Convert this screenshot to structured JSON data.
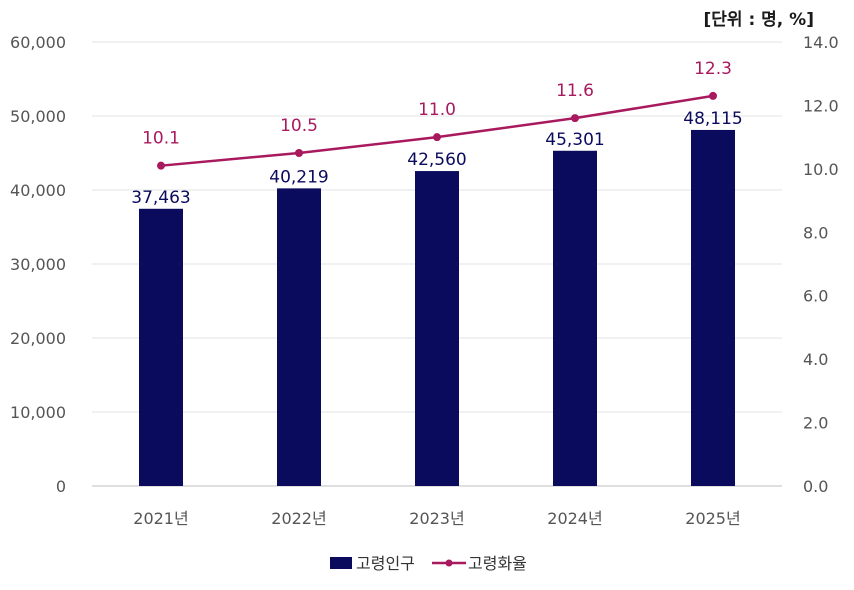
{
  "chart_data": {
    "type": "bar",
    "unit_label": "[단위 : 명, %]",
    "categories": [
      "2021년",
      "2022년",
      "2023년",
      "2024년",
      "2025년"
    ],
    "series": [
      {
        "name": "고령인구",
        "type": "bar",
        "axis": "left",
        "color": "#0b0b5e",
        "values": [
          37463,
          40219,
          42560,
          45301,
          48115
        ],
        "labels": [
          "37,463",
          "40,219",
          "42,560",
          "45,301",
          "48,115"
        ]
      },
      {
        "name": "고령화율",
        "type": "line",
        "axis": "right",
        "color": "#a8195e",
        "values": [
          10.1,
          10.5,
          11.0,
          11.6,
          12.3
        ],
        "labels": [
          "10.1",
          "10.5",
          "11.0",
          "11.6",
          "12.3"
        ]
      }
    ],
    "y_left": {
      "ylim": [
        0,
        60000
      ],
      "ticks": [
        0,
        10000,
        20000,
        30000,
        40000,
        50000,
        60000
      ],
      "tick_labels": [
        "0",
        "10,000",
        "20,000",
        "30,000",
        "40,000",
        "50,000",
        "60,000"
      ]
    },
    "y_right": {
      "ylim": [
        0,
        14
      ],
      "ticks": [
        0,
        2,
        4,
        6,
        8,
        10,
        12,
        14
      ],
      "tick_labels": [
        "0.0",
        "2.0",
        "4.0",
        "6.0",
        "8.0",
        "10.0",
        "12.0",
        "14.0"
      ]
    },
    "grid": true,
    "legend_position": "bottom"
  }
}
